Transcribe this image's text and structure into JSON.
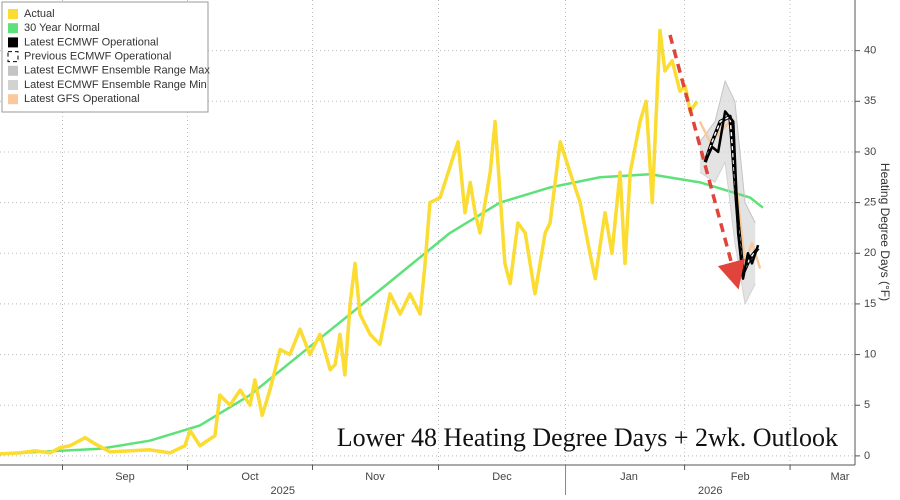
{
  "chart_data": {
    "type": "line",
    "annotation": "Lower 48 Heating Degree Days + 2wk. Outlook",
    "y_label": "Heating Degree Days (°F)",
    "xlim": [
      0,
      210
    ],
    "xticks": [
      {
        "value": 30.7,
        "label": "Sep"
      },
      {
        "value": 61.4,
        "label": "Oct"
      },
      {
        "value": 92.1,
        "label": "Nov"
      },
      {
        "value": 123.3,
        "label": "Dec"
      },
      {
        "value": 154.5,
        "label": "Jan"
      },
      {
        "value": 181.8,
        "label": "Feb"
      },
      {
        "value": 206.3,
        "label": "Mar"
      }
    ],
    "year_labels": [
      "2025",
      "2026"
    ],
    "ylim": [
      -0.9,
      45
    ],
    "yticks": [
      0,
      5,
      10,
      15,
      20,
      25,
      30,
      35,
      40
    ],
    "grid": true,
    "legend": "upper left",
    "series": [
      {
        "name": "Actual",
        "color": "#fbdc32",
        "style": "solid",
        "x": [
          0,
          4.9,
          8.6,
          12.3,
          14.7,
          17.2,
          20.9,
          23.3,
          27,
          31.9,
          36.8,
          41.8,
          45.4,
          46.7,
          49.1,
          52.8,
          54,
          56.5,
          59,
          61.4,
          62.6,
          64.4,
          66.3,
          68.8,
          71.2,
          73.7,
          76.1,
          78.6,
          81.1,
          82.3,
          83.5,
          84.7,
          86,
          87.2,
          88.4,
          90.9,
          93.3,
          95.8,
          98.3,
          100.7,
          103.2,
          104.4,
          105.6,
          108.1,
          109.3,
          110.5,
          112.5,
          114.2,
          115.5,
          116.7,
          117.9,
          120.4,
          121.6,
          122.8,
          124,
          125.3,
          127.2,
          129,
          131.4,
          133.9,
          135.1,
          137.6,
          140,
          142.5,
          144.9,
          146.2,
          148.6,
          150.3,
          152.3,
          153.5,
          154.8,
          157.2,
          158.7,
          160.2,
          162.1,
          163.3,
          165.1,
          167,
          168.3,
          169.5,
          171.2
        ],
        "values": [
          0.2,
          0.3,
          0.5,
          0.3,
          0.8,
          1,
          1.8,
          1.2,
          0.4,
          0.5,
          0.6,
          0.3,
          1,
          2.5,
          1,
          2,
          6,
          5,
          6.5,
          5,
          7.5,
          4,
          6.5,
          10.5,
          10,
          12.5,
          10,
          12,
          8.5,
          9,
          12,
          8,
          15,
          19,
          14,
          12,
          11,
          16,
          14,
          16,
          14,
          19,
          25,
          25.5,
          27,
          28.5,
          31,
          24,
          27,
          24,
          22,
          28,
          33,
          26,
          19,
          17,
          23,
          22,
          16,
          22,
          23,
          31,
          28,
          25,
          20,
          17.5,
          24,
          20,
          28,
          19,
          28,
          33,
          35,
          25,
          42,
          38,
          39,
          36,
          36.5,
          34,
          35
        ]
      },
      {
        "name": "30 Year Normal",
        "color": "#5de27a",
        "style": "solid",
        "x": [
          0,
          24.6,
          36.8,
          49.1,
          61.4,
          73.7,
          86,
          98.3,
          110.5,
          122.8,
          135.1,
          147.4,
          159.7,
          171.9,
          184.2,
          187.4
        ],
        "values": [
          0.2,
          0.7,
          1.5,
          3,
          6,
          10,
          14,
          18,
          22,
          25,
          26.5,
          27.5,
          27.8,
          27,
          25.5,
          24.5
        ]
      },
      {
        "name": "Latest ECMWF Operational",
        "color": "#000000",
        "style": "solid",
        "x": [
          173.2,
          174.9,
          176.4,
          178.1,
          180.1,
          181.3,
          182.5,
          183.7,
          184.7,
          186.2
        ],
        "values": [
          29,
          30.5,
          30,
          34,
          33,
          22,
          17.5,
          20,
          19,
          20.8
        ]
      },
      {
        "name": "Previous ECMWF Operational",
        "color": "#000000",
        "style": "dashed",
        "x": [
          173.2,
          174.9,
          176.9,
          179.3,
          181.3,
          182.5,
          184.2,
          186.2
        ],
        "values": [
          29,
          31,
          33,
          33.5,
          23,
          18,
          19.5,
          20.5
        ]
      },
      {
        "name": "Latest ECMWF Ensemble Range Max",
        "color": "#c4c4c4",
        "style": "band",
        "x": [
          171.9,
          175.6,
          178.1,
          180.5,
          183,
          185.5
        ],
        "values": [
          31,
          33,
          37,
          35,
          25,
          23
        ]
      },
      {
        "name": "Latest ECMWF Ensemble Range Min",
        "color": "#d2d2d2",
        "style": "band",
        "x": [
          171.9,
          175.6,
          178.1,
          180.5,
          183,
          185.5
        ],
        "values": [
          28,
          27,
          29,
          21,
          15,
          17
        ]
      },
      {
        "name": "Latest GFS Operational",
        "color": "#f9c99b",
        "style": "solid",
        "x": [
          171.9,
          174.4,
          176.9,
          179.3,
          181.3,
          183,
          184.7,
          186.7
        ],
        "values": [
          33,
          31,
          32,
          33,
          25,
          19,
          21,
          18.5
        ]
      }
    ]
  }
}
